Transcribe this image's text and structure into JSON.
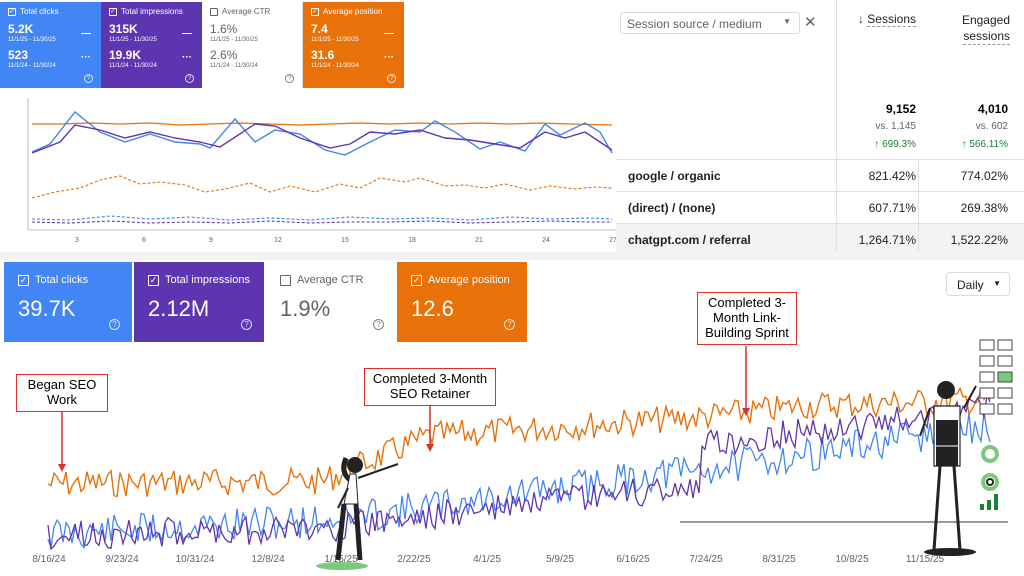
{
  "gsc_small": {
    "cards": [
      {
        "label": "Total clicks",
        "value1": "5.2K",
        "date1": "11/1/25 - 11/30/25",
        "value2": "523",
        "date2": "11/1/24 - 11/30/24",
        "color": "#4285f4",
        "checked": true
      },
      {
        "label": "Total impressions",
        "value1": "315K",
        "date1": "11/1/25 - 11/30/25",
        "value2": "19.9K",
        "date2": "11/1/24 - 11/30/24",
        "color": "#5e35b1",
        "checked": true
      },
      {
        "label": "Average CTR",
        "value1": "1.6%",
        "date1": "11/1/25 - 11/30/25",
        "value2": "2.6%",
        "date2": "11/1/24 - 11/30/24",
        "color": "#ffffff",
        "checked": false
      },
      {
        "label": "Average position",
        "value1": "7.4",
        "date1": "11/1/25 - 11/30/25",
        "value2": "31.6",
        "date2": "11/1/24 - 11/30/24",
        "color": "#e8710a",
        "checked": true
      }
    ],
    "dash_symbol": "—",
    "dots_symbol": "···",
    "help_symbol": "?",
    "x_ticks": [
      "3",
      "6",
      "9",
      "12",
      "15",
      "18",
      "21",
      "24",
      "27"
    ]
  },
  "ga_table": {
    "dimension_label": "Session source / medium",
    "sessions_header": "Sessions",
    "engaged_header_line1": "Engaged",
    "engaged_header_line2": "sessions",
    "totals": {
      "sessions": "9,152",
      "sessions_vs": "vs. 1,145",
      "sessions_change": "↑ 699.3%",
      "engaged": "4,010",
      "engaged_vs": "vs. 602",
      "engaged_change": "↑ 566.11%"
    },
    "rows": [
      {
        "source": "google / organic",
        "sessions": "821.42%",
        "engaged": "774.02%"
      },
      {
        "source": "(direct) / (none)",
        "sessions": "607.71%",
        "engaged": "269.38%"
      },
      {
        "source": "chatgpt.com / referral",
        "sessions": "1,264.71%",
        "engaged": "1,522.22%"
      }
    ]
  },
  "gsc_large": {
    "cards": [
      {
        "label": "Total clicks",
        "value": "39.7K",
        "color": "#4285f4",
        "checked": true
      },
      {
        "label": "Total impressions",
        "value": "2.12M",
        "color": "#5e35b1",
        "checked": true
      },
      {
        "label": "Average CTR",
        "value": "1.9%",
        "color": "#ffffff",
        "checked": false
      },
      {
        "label": "Average position",
        "value": "12.6",
        "color": "#e8710a",
        "checked": true
      }
    ],
    "period_select": "Daily",
    "x_ticks": [
      "8/16/24",
      "9/23/24",
      "10/31/24",
      "12/8/24",
      "1/15/25",
      "2/22/25",
      "4/1/25",
      "5/9/25",
      "6/16/25",
      "7/24/25",
      "8/31/25",
      "10/8/25",
      "11/15/25"
    ],
    "annotations": [
      {
        "text": "Began SEO Work"
      },
      {
        "text": "Completed 3-Month SEO Retainer"
      },
      {
        "text": "Completed 3-Month Link-Building Sprint"
      }
    ]
  },
  "colors": {
    "clicks": "#4285f4",
    "impressions": "#5e35b1",
    "position": "#e8710a",
    "green": "#188038",
    "annot_border": "#d9332b"
  }
}
